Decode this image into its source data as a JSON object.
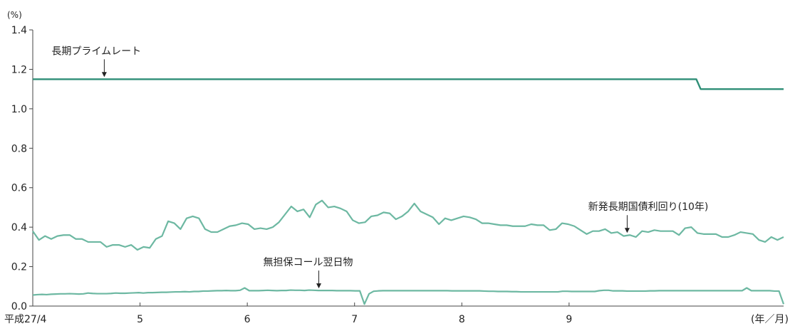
{
  "chart_data": {
    "type": "line",
    "title": "",
    "unit_label": "(%)",
    "ylim": [
      0.0,
      1.4
    ],
    "y_ticks": [
      "0.0",
      "0.2",
      "0.4",
      "0.6",
      "0.8",
      "1.0",
      "1.2",
      "1.4"
    ],
    "x_range": [
      0,
      168
    ],
    "x_ticks": [
      {
        "x": 0,
        "label": "平成27/4"
      },
      {
        "x": 24,
        "label": "5"
      },
      {
        "x": 48,
        "label": "6"
      },
      {
        "x": 72,
        "label": "7"
      },
      {
        "x": 96,
        "label": "8"
      },
      {
        "x": 120,
        "label": "9"
      }
    ],
    "x_unit_label": "(年／月)",
    "grid": false,
    "series": [
      {
        "name": "長期プライムレート",
        "color": "#2f8f77",
        "annotation_x": 16,
        "values": [
          1.15,
          1.15,
          1.15,
          1.15,
          1.15,
          1.15,
          1.15,
          1.15,
          1.15,
          1.15,
          1.15,
          1.15,
          1.15,
          1.15,
          1.15,
          1.15,
          1.15,
          1.15,
          1.15,
          1.15,
          1.15,
          1.15,
          1.15,
          1.15,
          1.15,
          1.15,
          1.15,
          1.15,
          1.15,
          1.15,
          1.15,
          1.15,
          1.15,
          1.15,
          1.15,
          1.15,
          1.15,
          1.15,
          1.15,
          1.15,
          1.15,
          1.15,
          1.15,
          1.15,
          1.15,
          1.15,
          1.15,
          1.15,
          1.15,
          1.15,
          1.15,
          1.15,
          1.15,
          1.15,
          1.15,
          1.15,
          1.15,
          1.15,
          1.15,
          1.15,
          1.15,
          1.15,
          1.15,
          1.15,
          1.15,
          1.15,
          1.15,
          1.15,
          1.15,
          1.15,
          1.15,
          1.15,
          1.15,
          1.15,
          1.15,
          1.15,
          1.15,
          1.15,
          1.15,
          1.15,
          1.15,
          1.15,
          1.15,
          1.15,
          1.15,
          1.15,
          1.15,
          1.15,
          1.15,
          1.15,
          1.15,
          1.15,
          1.15,
          1.15,
          1.15,
          1.15,
          1.15,
          1.15,
          1.15,
          1.15,
          1.15,
          1.15,
          1.15,
          1.15,
          1.15,
          1.15,
          1.15,
          1.15,
          1.15,
          1.15,
          1.15,
          1.15,
          1.15,
          1.15,
          1.15,
          1.15,
          1.15,
          1.15,
          1.15,
          1.15,
          1.15,
          1.15,
          1.15,
          1.15,
          1.15,
          1.15,
          1.15,
          1.15,
          1.15,
          1.15,
          1.15,
          1.15,
          1.15,
          1.15,
          1.15,
          1.15,
          1.15,
          1.15,
          1.15,
          1.15,
          1.15,
          1.15,
          1.15,
          1.15,
          1.15,
          1.15,
          1.15,
          1.15,
          1.15,
          1.15,
          1.15,
          1.15,
          1.15,
          1.1,
          1.1,
          1.1,
          1.1,
          1.1,
          1.1,
          1.1,
          1.1,
          1.1,
          1.1,
          1.1,
          1.1,
          1.1,
          1.1,
          1.1,
          1.1,
          1.1,
          1.1,
          1.1,
          1.1
        ]
      },
      {
        "name": "新発長期国債利回り(10年)",
        "color": "#6db8a2",
        "annotation_x": 133,
        "values": [
          0.38,
          0.335,
          0.355,
          0.34,
          0.355,
          0.36,
          0.36,
          0.34,
          0.34,
          0.325,
          0.325,
          0.325,
          0.3,
          0.31,
          0.31,
          0.3,
          0.31,
          0.285,
          0.3,
          0.295,
          0.34,
          0.355,
          0.43,
          0.42,
          0.39,
          0.445,
          0.455,
          0.445,
          0.39,
          0.375,
          0.375,
          0.39,
          0.405,
          0.41,
          0.42,
          0.415,
          0.39,
          0.395,
          0.39,
          0.4,
          0.425,
          0.465,
          0.505,
          0.48,
          0.49,
          0.45,
          0.515,
          0.535,
          0.5,
          0.505,
          0.495,
          0.48,
          0.435,
          0.42,
          0.425,
          0.455,
          0.46,
          0.475,
          0.47,
          0.44,
          0.455,
          0.48,
          0.52,
          0.48,
          0.465,
          0.45,
          0.415,
          0.445,
          0.435,
          0.445,
          0.455,
          0.45,
          0.44,
          0.42,
          0.42,
          0.415,
          0.41,
          0.41,
          0.405,
          0.405,
          0.405,
          0.415,
          0.41,
          0.41,
          0.385,
          0.39,
          0.42,
          0.415,
          0.405,
          0.385,
          0.365,
          0.38,
          0.38,
          0.39,
          0.37,
          0.375,
          0.355,
          0.36,
          0.35,
          0.38,
          0.375,
          0.385,
          0.38,
          0.38,
          0.38,
          0.36,
          0.395,
          0.4,
          0.37,
          0.365,
          0.365,
          0.365,
          0.35,
          0.35,
          0.36,
          0.375,
          0.37,
          0.365,
          0.335,
          0.325,
          0.35,
          0.335,
          0.35
        ]
      },
      {
        "name": "無担保コール翌日物",
        "color": "#6db8a2",
        "annotation_x": 64,
        "values": [
          0.056,
          0.058,
          0.059,
          0.058,
          0.06,
          0.061,
          0.062,
          0.062,
          0.063,
          0.062,
          0.061,
          0.062,
          0.066,
          0.064,
          0.063,
          0.063,
          0.063,
          0.064,
          0.066,
          0.065,
          0.065,
          0.066,
          0.067,
          0.068,
          0.066,
          0.068,
          0.068,
          0.069,
          0.07,
          0.07,
          0.071,
          0.072,
          0.072,
          0.073,
          0.072,
          0.074,
          0.074,
          0.076,
          0.076,
          0.077,
          0.078,
          0.078,
          0.079,
          0.078,
          0.078,
          0.08,
          0.092,
          0.078,
          0.078,
          0.078,
          0.079,
          0.08,
          0.079,
          0.078,
          0.079,
          0.079,
          0.081,
          0.08,
          0.08,
          0.079,
          0.081,
          0.08,
          0.079,
          0.079,
          0.079,
          0.079,
          0.078,
          0.078,
          0.078,
          0.078,
          0.077,
          0.077,
          0.01,
          0.062,
          0.075,
          0.077,
          0.078,
          0.078,
          0.078,
          0.078,
          0.078,
          0.078,
          0.078,
          0.078,
          0.078,
          0.078,
          0.078,
          0.078,
          0.078,
          0.078,
          0.078,
          0.077,
          0.077,
          0.077,
          0.077,
          0.077,
          0.077,
          0.077,
          0.076,
          0.075,
          0.075,
          0.074,
          0.074,
          0.074,
          0.073,
          0.073,
          0.072,
          0.072,
          0.072,
          0.072,
          0.072,
          0.072,
          0.072,
          0.072,
          0.072,
          0.075,
          0.075,
          0.074,
          0.074,
          0.074,
          0.074,
          0.074,
          0.074,
          0.078,
          0.08,
          0.08,
          0.077,
          0.077,
          0.077,
          0.076,
          0.076,
          0.076,
          0.076,
          0.076,
          0.077,
          0.077,
          0.078,
          0.078,
          0.078,
          0.078,
          0.078,
          0.078,
          0.078,
          0.078,
          0.078,
          0.078,
          0.078,
          0.078,
          0.078,
          0.078,
          0.078,
          0.078,
          0.078,
          0.078,
          0.078,
          0.092,
          0.078,
          0.078,
          0.078,
          0.078,
          0.078,
          0.076,
          0.076,
          0.01
        ]
      }
    ]
  }
}
